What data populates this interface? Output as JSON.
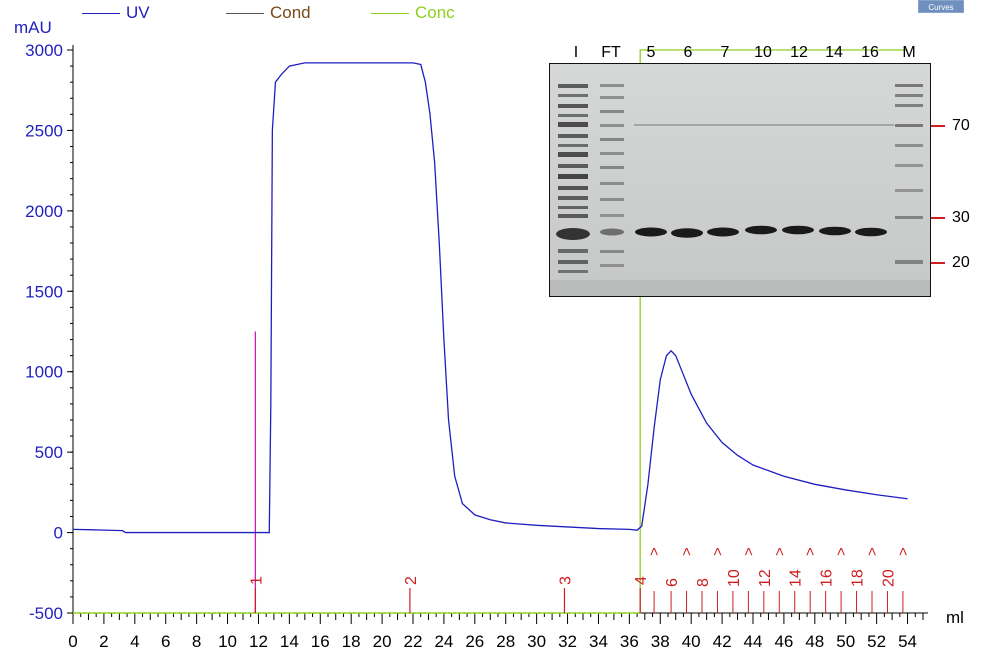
{
  "legend": [
    {
      "name": "UV",
      "color": "#1f1fc0"
    },
    {
      "name": "Cond",
      "color": "#7a4a18"
    },
    {
      "name": "Conc",
      "color": "#8fcf1f"
    }
  ],
  "curves_button": "Curves",
  "gel": {
    "lanes": [
      "I",
      "FT",
      "5",
      "6",
      "7",
      "10",
      "12",
      "14",
      "16",
      "M"
    ],
    "markers": [
      "70",
      "30",
      "20"
    ]
  },
  "chart_data": {
    "type": "line",
    "ylabel": "mAU",
    "xlabel": "ml",
    "xlim": [
      0,
      55
    ],
    "ylim": [
      -500,
      3000
    ],
    "xticks": [
      0,
      2,
      4,
      6,
      8,
      10,
      12,
      14,
      16,
      18,
      20,
      22,
      24,
      26,
      28,
      30,
      32,
      34,
      36,
      38,
      40,
      42,
      44,
      46,
      48,
      50,
      52,
      54
    ],
    "yticks": [
      -500,
      0,
      500,
      1000,
      1500,
      2000,
      2500,
      3000
    ],
    "series": [
      {
        "name": "UV",
        "color": "#1f1fc0",
        "x": [
          0,
          1,
          2,
          3.2,
          3.4,
          6,
          8,
          10,
          11,
          12,
          12.7,
          12.8,
          12.9,
          13.1,
          13.5,
          14,
          15,
          16,
          18,
          20,
          22,
          22.5,
          22.8,
          23.1,
          23.4,
          23.7,
          24,
          24.3,
          24.7,
          25.2,
          26,
          27,
          28,
          30,
          32,
          34,
          36,
          36.5,
          36.8,
          37.2,
          37.6,
          38,
          38.4,
          38.7,
          39,
          39.5,
          40,
          41,
          42,
          43,
          44,
          46,
          48,
          50,
          52,
          54
        ],
        "y": [
          20,
          18,
          15,
          12,
          0,
          0,
          0,
          0,
          0,
          0,
          0,
          800,
          2500,
          2800,
          2850,
          2900,
          2920,
          2920,
          2920,
          2920,
          2920,
          2910,
          2800,
          2600,
          2300,
          1800,
          1200,
          700,
          350,
          180,
          110,
          80,
          60,
          45,
          35,
          25,
          20,
          15,
          40,
          300,
          650,
          950,
          1100,
          1130,
          1100,
          980,
          860,
          680,
          560,
          480,
          420,
          350,
          300,
          265,
          235,
          210
        ]
      },
      {
        "name": "Conc",
        "color": "#8fcf1f",
        "x": [
          0,
          36.7,
          36.7,
          54
        ],
        "y": [
          -500,
          -500,
          3000,
          3000
        ]
      }
    ],
    "injection_mark": {
      "x": 11.8,
      "y": 1250,
      "color": "#cc1fae"
    },
    "fractions": {
      "color": "#cc1f1f",
      "large": [
        {
          "x": 11.8,
          "label": "1"
        },
        {
          "x": 21.8,
          "label": "2"
        },
        {
          "x": 31.8,
          "label": "3"
        },
        {
          "x": 36.7,
          "label": "4"
        }
      ],
      "small_ticks": [
        37.6,
        38.7,
        39.7,
        40.7,
        41.7,
        42.7,
        43.7,
        44.7,
        45.7,
        46.7,
        47.7,
        48.7,
        49.7,
        50.7,
        51.7,
        52.7,
        53.7
      ],
      "small_labels": [
        {
          "x": 38.7,
          "label": "6"
        },
        {
          "x": 40.7,
          "label": "8"
        },
        {
          "x": 42.7,
          "label": "10"
        },
        {
          "x": 44.7,
          "label": "12"
        },
        {
          "x": 46.7,
          "label": "14"
        },
        {
          "x": 48.7,
          "label": "16"
        },
        {
          "x": 50.7,
          "label": "18"
        },
        {
          "x": 52.7,
          "label": "20"
        }
      ],
      "carets": [
        37.6,
        39.7,
        41.7,
        43.7,
        45.7,
        47.7,
        49.7,
        51.7,
        53.7
      ],
      "caret_symbol": ">"
    }
  }
}
